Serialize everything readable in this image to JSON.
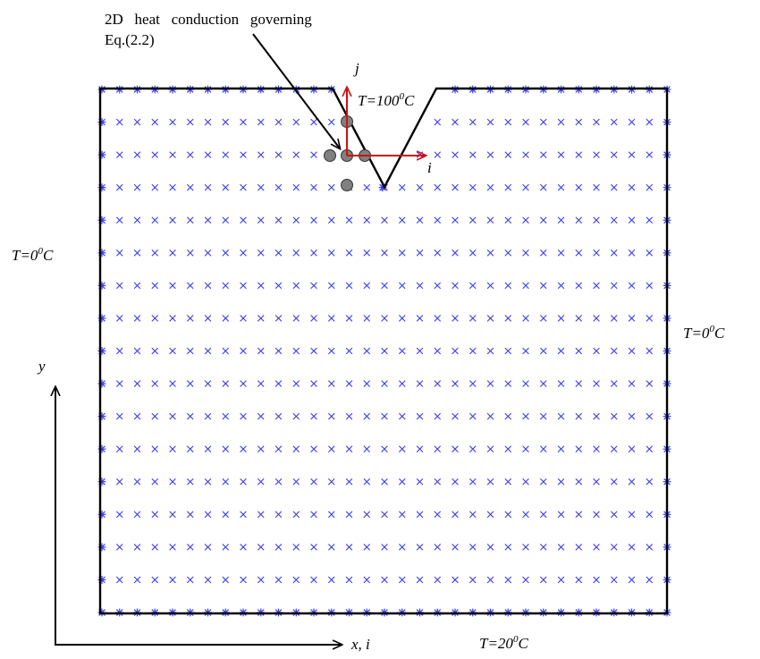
{
  "annotation": {
    "line1": "2D   heat   conduction   governing",
    "line2": "Eq.(2.2)"
  },
  "labels": {
    "top_T_prefix": "T=100",
    "top_T_sup": "0",
    "top_T_suffix": "C",
    "left_T_prefix": "T=0",
    "left_T_sup": "0",
    "left_T_suffix": "C",
    "right_T_prefix": "T=0",
    "right_T_sup": "0",
    "right_T_suffix": "C",
    "bottom_T_prefix": "T=20",
    "bottom_T_sup": "0",
    "bottom_T_suffix": "C",
    "local_j": "j",
    "local_i": "i",
    "axis_y": "y",
    "axis_x": "x, i"
  },
  "colors": {
    "boundary": "#000000",
    "node": "#3a3af0",
    "local_axes": "#d01010",
    "stencil": "#808080"
  },
  "grid": {
    "columns": 33,
    "rows": 17,
    "notch_vertex_column": 16,
    "notch_vertex_row": 3,
    "notch_top_left_column": 13.5,
    "notch_top_right_column": 19.5
  },
  "stencil_nodes": [
    {
      "name": "center",
      "i": 14,
      "j": 2
    },
    {
      "name": "west",
      "i": 13,
      "j": 2
    },
    {
      "name": "east",
      "i": 15,
      "j": 2
    },
    {
      "name": "north",
      "i": 14,
      "j": 1
    },
    {
      "name": "south",
      "i": 14,
      "j": 3
    }
  ]
}
